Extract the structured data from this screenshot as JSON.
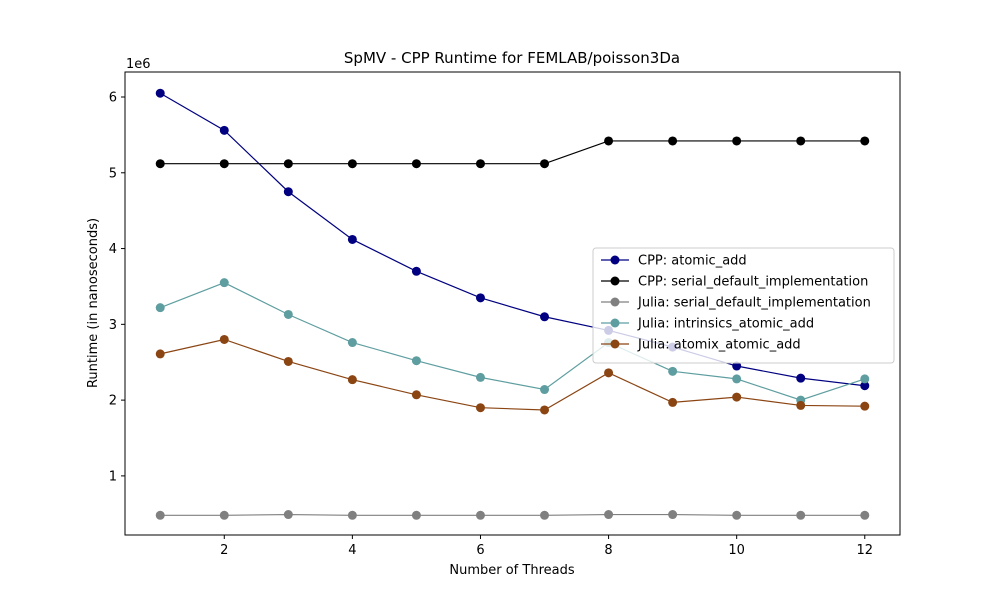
{
  "chart_data": {
    "type": "line",
    "title": "SpMV - CPP Runtime for FEMLAB/poisson3Da",
    "xlabel": "Number of Threads",
    "ylabel": "Runtime (in nanoseconds)",
    "y_scale_label": "1e6",
    "x": [
      1,
      2,
      3,
      4,
      5,
      6,
      7,
      8,
      9,
      10,
      11,
      12
    ],
    "xlim": [
      0.45,
      12.55
    ],
    "ylim": [
      0.22,
      6.33
    ],
    "x_ticks": [
      2,
      4,
      6,
      8,
      10,
      12
    ],
    "y_ticks": [
      1,
      2,
      3,
      4,
      5,
      6
    ],
    "grid": false,
    "legend_position": "center-right",
    "series": [
      {
        "name": "CPP: atomic_add",
        "color": "#000080",
        "values": [
          6.05,
          5.56,
          4.75,
          4.12,
          3.7,
          3.35,
          3.1,
          2.92,
          2.7,
          2.45,
          2.29,
          2.19
        ]
      },
      {
        "name": "CPP: serial_default_implementation",
        "color": "#000000",
        "values": [
          5.12,
          5.12,
          5.12,
          5.12,
          5.12,
          5.12,
          5.12,
          5.42,
          5.42,
          5.42,
          5.42,
          5.42
        ]
      },
      {
        "name": "Julia: serial_default_implementation",
        "color": "#808080",
        "values": [
          0.48,
          0.48,
          0.49,
          0.48,
          0.48,
          0.48,
          0.48,
          0.49,
          0.49,
          0.48,
          0.48,
          0.48
        ]
      },
      {
        "name": "Julia: intrinsics_atomic_add",
        "color": "#5f9ea0",
        "values": [
          3.22,
          3.55,
          3.13,
          2.76,
          2.52,
          2.3,
          2.14,
          2.76,
          2.38,
          2.28,
          2.0,
          2.28
        ]
      },
      {
        "name": "Julia: atomix_atomic_add",
        "color": "#8b4513",
        "values": [
          2.61,
          2.8,
          2.51,
          2.27,
          2.07,
          1.9,
          1.87,
          2.36,
          1.97,
          2.04,
          1.93,
          1.92
        ]
      }
    ]
  }
}
